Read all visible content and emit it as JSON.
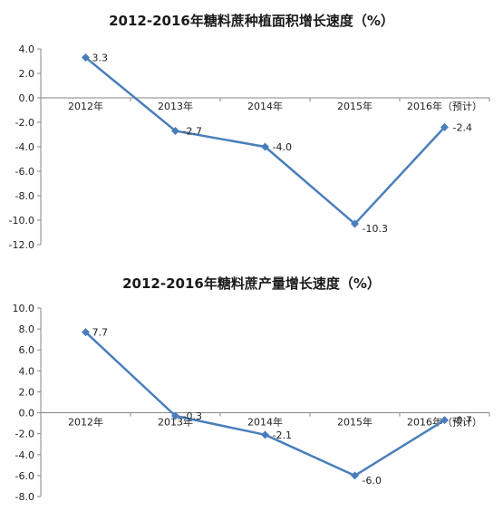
{
  "chart_data": [
    {
      "type": "line",
      "title": "2012-2016年糖料蔗种植面积增长速度（%）",
      "categories": [
        "2012年",
        "2013年",
        "2014年",
        "2015年",
        "2016年（预计）"
      ],
      "series": [
        {
          "values": [
            3.3,
            -2.7,
            -4.0,
            -10.3,
            -2.4
          ]
        }
      ],
      "data_labels": [
        "3.3",
        "-2.7",
        "-4.0",
        "-10.3",
        "-2.4"
      ],
      "y_ticks": [
        "4.0",
        "2.0",
        "0.0",
        "-2.0",
        "-4.0",
        "-6.0",
        "-8.0",
        "-10.0",
        "-12.0"
      ],
      "ylim": [
        -12,
        4
      ],
      "ystep": 2,
      "grid": false,
      "line_color": "#4a7ebb"
    },
    {
      "type": "line",
      "title": "2012-2016年糖料蔗产量增长速度（%）",
      "categories": [
        "2012年",
        "2013年",
        "2014年",
        "2015年",
        "2016年（预计）"
      ],
      "series": [
        {
          "values": [
            7.7,
            -0.3,
            -2.1,
            -6.0,
            -0.7
          ]
        }
      ],
      "data_labels": [
        "7.7",
        "-0.3",
        "-2.1",
        "-6.0",
        "-0.7"
      ],
      "y_ticks": [
        "10.0",
        "8.0",
        "6.0",
        "4.0",
        "2.0",
        "0.0",
        "-2.0",
        "-4.0",
        "-6.0",
        "-8.0"
      ],
      "ylim": [
        -8,
        10
      ],
      "ystep": 2,
      "grid": false,
      "line_color": "#4a7ebb"
    }
  ]
}
